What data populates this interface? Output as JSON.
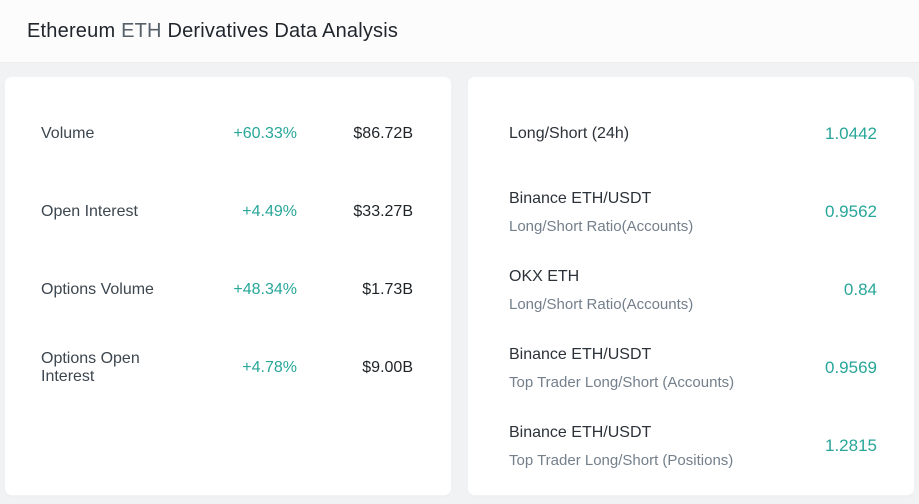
{
  "title": {
    "coin_name": "Ethereum",
    "coin_symbol": "ETH",
    "suffix": "Derivatives Data Analysis"
  },
  "colors": {
    "accent_teal": "#27a699",
    "text_dark": "#1f2428",
    "text_label": "#3c464f",
    "text_secondary": "#737f8b",
    "page_bg": "#f1f2f4",
    "header_bg": "#fcfcfd",
    "card_bg": "#ffffff"
  },
  "derivatives_card": {
    "rows": [
      {
        "label": "Volume",
        "change": "+60.33%",
        "value": "$86.72B"
      },
      {
        "label": "Open Interest",
        "change": "+4.49%",
        "value": "$33.27B"
      },
      {
        "label": "Options Volume",
        "change": "+48.34%",
        "value": "$1.73B"
      },
      {
        "label": "Options Open Interest",
        "change": "+4.78%",
        "value": "$9.00B"
      }
    ]
  },
  "ratios_card": {
    "rows": [
      {
        "name": "Long/Short (24h)",
        "detail": "",
        "value": "1.0442"
      },
      {
        "name": "Binance ETH/USDT",
        "detail": "Long/Short Ratio(Accounts)",
        "value": "0.9562"
      },
      {
        "name": "OKX ETH",
        "detail": "Long/Short Ratio(Accounts)",
        "value": "0.84"
      },
      {
        "name": "Binance ETH/USDT",
        "detail": "Top Trader Long/Short (Accounts)",
        "value": "0.9569"
      },
      {
        "name": "Binance ETH/USDT",
        "detail": "Top Trader Long/Short (Positions)",
        "value": "1.2815"
      }
    ]
  }
}
